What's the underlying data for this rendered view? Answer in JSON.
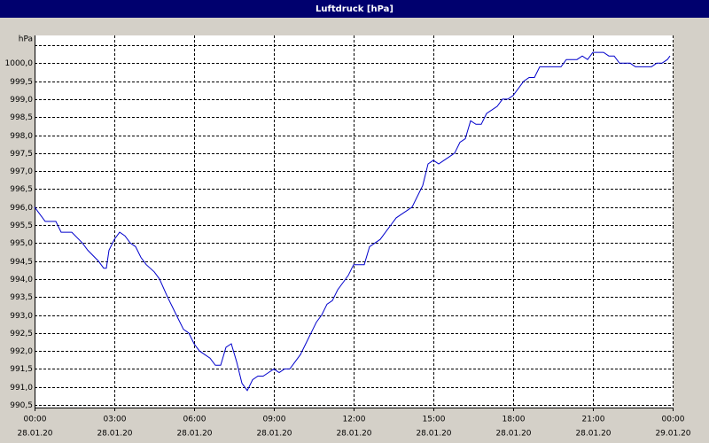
{
  "chart_data": {
    "type": "line",
    "title": "Luftdruck [hPa]",
    "y_label": "hPa",
    "x": [
      0,
      0.2,
      0.4,
      0.8,
      1.0,
      1.4,
      1.8,
      2.0,
      2.4,
      2.6,
      2.7,
      2.8,
      3.0,
      3.2,
      3.4,
      3.6,
      3.8,
      4.0,
      4.2,
      4.5,
      4.7,
      5.0,
      5.2,
      5.4,
      5.6,
      5.8,
      6.0,
      6.2,
      6.4,
      6.6,
      6.8,
      7.0,
      7.2,
      7.4,
      7.6,
      7.8,
      8.0,
      8.2,
      8.4,
      8.6,
      8.8,
      9.0,
      9.2,
      9.4,
      9.6,
      9.8,
      10.0,
      10.2,
      10.4,
      10.6,
      10.8,
      11.0,
      11.2,
      11.4,
      11.6,
      11.8,
      12.0,
      12.2,
      12.4,
      12.6,
      12.8,
      13.0,
      13.2,
      13.4,
      13.6,
      13.8,
      14.0,
      14.2,
      14.4,
      14.6,
      14.8,
      15.0,
      15.2,
      15.4,
      15.6,
      15.8,
      16.0,
      16.2,
      16.4,
      16.6,
      16.8,
      17.0,
      17.2,
      17.4,
      17.6,
      17.8,
      18.0,
      18.2,
      18.4,
      18.6,
      18.8,
      19.0,
      19.2,
      19.4,
      19.6,
      19.8,
      20.0,
      20.2,
      20.4,
      20.6,
      20.8,
      21.0,
      21.2,
      21.4,
      21.6,
      21.8,
      22.0,
      22.2,
      22.4,
      22.6,
      22.8,
      23.0,
      23.2,
      23.4,
      23.6,
      23.8,
      23.9
    ],
    "series": [
      {
        "name": "Luftdruck",
        "color": "#0000cc",
        "values": [
          996.0,
          995.8,
          995.6,
          995.6,
          995.3,
          995.3,
          995.0,
          994.8,
          994.5,
          994.3,
          994.3,
          994.8,
          995.1,
          995.3,
          995.2,
          995.0,
          994.9,
          994.6,
          994.4,
          994.2,
          994.0,
          993.5,
          993.2,
          992.9,
          992.6,
          992.5,
          992.2,
          992.0,
          991.9,
          991.8,
          991.6,
          991.6,
          992.1,
          992.2,
          991.7,
          991.1,
          990.9,
          991.2,
          991.3,
          991.3,
          991.4,
          991.5,
          991.4,
          991.5,
          991.5,
          991.7,
          991.9,
          992.2,
          992.5,
          992.8,
          993.0,
          993.3,
          993.4,
          993.7,
          993.9,
          994.1,
          994.4,
          994.4,
          994.4,
          994.9,
          995.0,
          995.1,
          995.3,
          995.5,
          995.7,
          995.8,
          995.9,
          996.0,
          996.3,
          996.6,
          997.2,
          997.3,
          997.2,
          997.3,
          997.4,
          997.5,
          997.8,
          997.9,
          998.4,
          998.3,
          998.3,
          998.6,
          998.7,
          998.8,
          999.0,
          999.0,
          999.1,
          999.3,
          999.5,
          999.6,
          999.6,
          999.9,
          999.9,
          999.9,
          999.9,
          999.9,
          1000.1,
          1000.1,
          1000.1,
          1000.2,
          1000.1,
          1000.3,
          1000.3,
          1000.3,
          1000.2,
          1000.2,
          1000.0,
          1000.0,
          1000.0,
          999.9,
          999.9,
          999.9,
          999.9,
          1000.0,
          1000.0,
          1000.1,
          1000.2
        ]
      }
    ],
    "xlim": [
      0,
      24
    ],
    "xticks": [
      {
        "value": 0,
        "label": "00:00",
        "date": "28.01.20"
      },
      {
        "value": 3,
        "label": "03:00",
        "date": "28.01.20"
      },
      {
        "value": 6,
        "label": "06:00",
        "date": "28.01.20"
      },
      {
        "value": 9,
        "label": "09:00",
        "date": "28.01.20"
      },
      {
        "value": 12,
        "label": "12:00",
        "date": "28.01.20"
      },
      {
        "value": 15,
        "label": "15:00",
        "date": "28.01.20"
      },
      {
        "value": 18,
        "label": "18:00",
        "date": "28.01.20"
      },
      {
        "value": 21,
        "label": "21:00",
        "date": "28.01.20"
      },
      {
        "value": 24,
        "label": "00:00",
        "date": "29.01.20"
      }
    ],
    "ylim": [
      990.5,
      1000.5
    ],
    "yticks": [
      {
        "value": 990.5,
        "label": "990,5"
      },
      {
        "value": 991.0,
        "label": "991,0"
      },
      {
        "value": 991.5,
        "label": "991,5"
      },
      {
        "value": 992.0,
        "label": "992,0"
      },
      {
        "value": 992.5,
        "label": "992,5"
      },
      {
        "value": 993.0,
        "label": "993,0"
      },
      {
        "value": 993.5,
        "label": "993,5"
      },
      {
        "value": 994.0,
        "label": "994,0"
      },
      {
        "value": 994.5,
        "label": "994,5"
      },
      {
        "value": 995.0,
        "label": "995,0"
      },
      {
        "value": 995.5,
        "label": "995,5"
      },
      {
        "value": 996.0,
        "label": "996,0"
      },
      {
        "value": 996.5,
        "label": "996,5"
      },
      {
        "value": 997.0,
        "label": "997,0"
      },
      {
        "value": 997.5,
        "label": "997,5"
      },
      {
        "value": 998.0,
        "label": "998,0"
      },
      {
        "value": 998.5,
        "label": "998,5"
      },
      {
        "value": 999.0,
        "label": "999,0"
      },
      {
        "value": 999.5,
        "label": "999,5"
      },
      {
        "value": 1000.0,
        "label": "1000,0"
      }
    ],
    "grid": true
  }
}
